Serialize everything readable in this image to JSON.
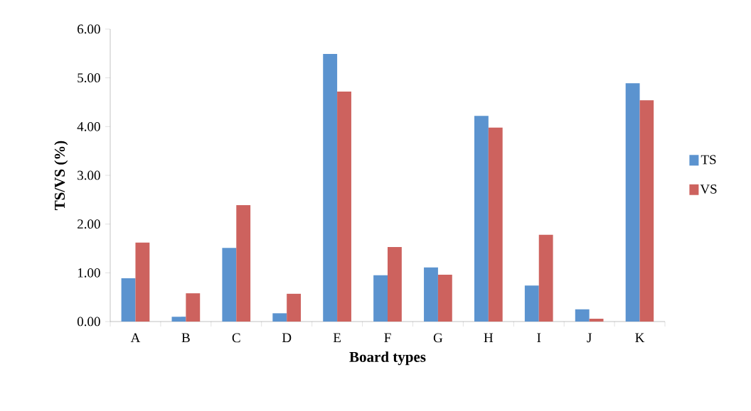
{
  "chart_data": {
    "type": "bar",
    "xlabel": "Board types",
    "ylabel": "TS/VS (%)",
    "categories": [
      "A",
      "B",
      "C",
      "D",
      "E",
      "F",
      "G",
      "H",
      "I",
      "J",
      "K"
    ],
    "series": [
      {
        "name": "TS",
        "color": "#5b93cf",
        "values": [
          0.89,
          0.1,
          1.51,
          0.17,
          5.49,
          0.95,
          1.11,
          4.22,
          0.74,
          0.25,
          4.89
        ]
      },
      {
        "name": "VS",
        "color": "#cd625e",
        "values": [
          1.62,
          0.58,
          2.39,
          0.57,
          4.72,
          1.53,
          0.96,
          3.98,
          1.78,
          0.06,
          4.54
        ]
      }
    ],
    "ylim": [
      0,
      6
    ],
    "yticks": [
      {
        "value": 0,
        "label": "0.00"
      },
      {
        "value": 1,
        "label": "1.00"
      },
      {
        "value": 2,
        "label": "2.00"
      },
      {
        "value": 3,
        "label": "3.00"
      },
      {
        "value": 4,
        "label": "4.00"
      },
      {
        "value": 5,
        "label": "5.00"
      },
      {
        "value": 6,
        "label": "6.00"
      }
    ],
    "grid": false,
    "legend": "right"
  }
}
